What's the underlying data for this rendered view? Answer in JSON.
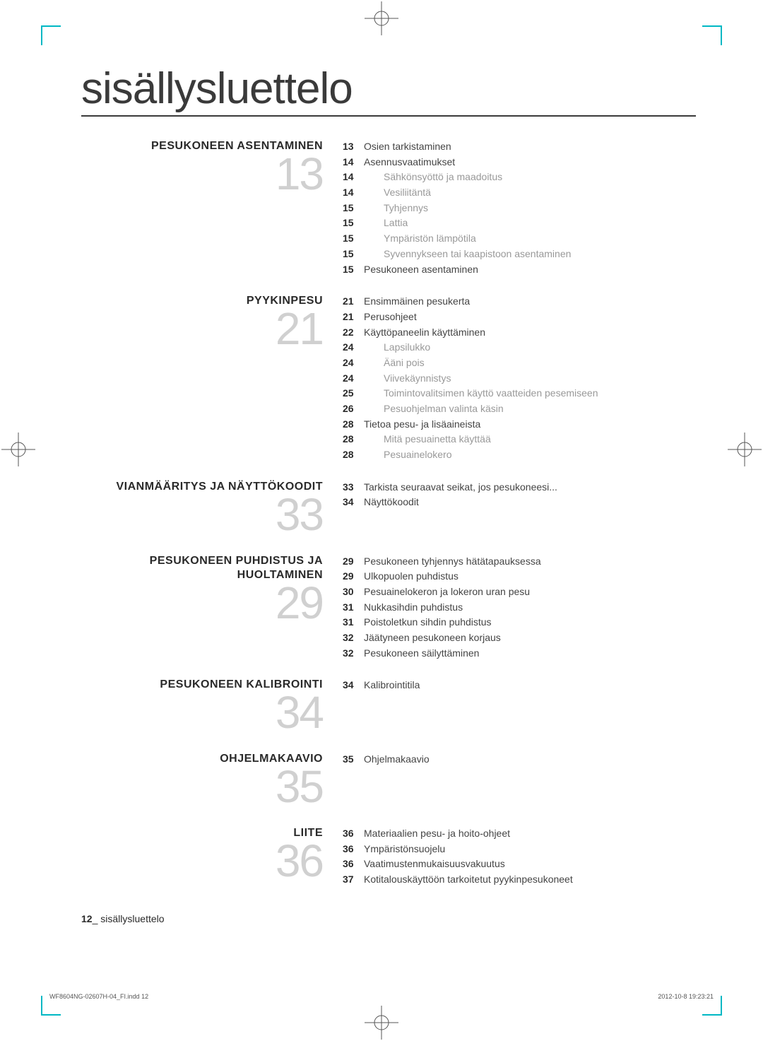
{
  "page_title": "sisällysluettelo",
  "colors": {
    "text": "#3a3a3a",
    "muted": "#999999",
    "bignum": "#d0d0d0",
    "accent": "#00b8c4",
    "rule": "#3a3a3a"
  },
  "sections": [
    {
      "heading": "PESUKONEEN ASENTAMINEN",
      "bignum": "13",
      "entries": [
        {
          "page": "13",
          "text": "Osien tarkistaminen",
          "indent": false
        },
        {
          "page": "14",
          "text": "Asennusvaatimukset",
          "indent": false
        },
        {
          "page": "14",
          "text": "Sähkönsyöttö ja maadoitus",
          "indent": true
        },
        {
          "page": "14",
          "text": "Vesiliitäntä",
          "indent": true
        },
        {
          "page": "15",
          "text": "Tyhjennys",
          "indent": true
        },
        {
          "page": "15",
          "text": "Lattia",
          "indent": true
        },
        {
          "page": "15",
          "text": "Ympäristön lämpötila",
          "indent": true
        },
        {
          "page": "15",
          "text": "Syvennykseen tai kaapistoon asentaminen",
          "indent": true
        },
        {
          "page": "15",
          "text": "Pesukoneen asentaminen",
          "indent": false
        }
      ]
    },
    {
      "heading": "PYYKINPESU",
      "bignum": "21",
      "entries": [
        {
          "page": "21",
          "text": "Ensimmäinen pesukerta",
          "indent": false
        },
        {
          "page": "21",
          "text": "Perusohjeet",
          "indent": false
        },
        {
          "page": "22",
          "text": "Käyttöpaneelin käyttäminen",
          "indent": false
        },
        {
          "page": "24",
          "text": "Lapsilukko",
          "indent": true
        },
        {
          "page": "24",
          "text": "Ääni pois",
          "indent": true
        },
        {
          "page": "24",
          "text": "Viivekäynnistys",
          "indent": true
        },
        {
          "page": "25",
          "text": "Toimintovalitsimen käyttö vaatteiden pesemiseen",
          "indent": true
        },
        {
          "page": "26",
          "text": "Pesuohjelman valinta käsin",
          "indent": true
        },
        {
          "page": "28",
          "text": "Tietoa pesu- ja lisäaineista",
          "indent": false
        },
        {
          "page": "28",
          "text": "Mitä pesuainetta käyttää",
          "indent": true
        },
        {
          "page": "28",
          "text": "Pesuainelokero",
          "indent": true
        }
      ]
    },
    {
      "heading": "VIANMÄÄRITYS JA NÄYTTÖKOODIT",
      "bignum": "33",
      "entries": [
        {
          "page": "33",
          "text": "Tarkista seuraavat seikat, jos pesukoneesi...",
          "indent": false
        },
        {
          "page": "34",
          "text": "Näyttökoodit",
          "indent": false
        }
      ]
    },
    {
      "heading": "PESUKONEEN PUHDISTUS JA HUOLTAMINEN",
      "bignum": "29",
      "entries": [
        {
          "page": "29",
          "text": "Pesukoneen tyhjennys hätätapauksessa",
          "indent": false
        },
        {
          "page": "29",
          "text": "Ulkopuolen puhdistus",
          "indent": false
        },
        {
          "page": "30",
          "text": "Pesuainelokeron ja lokeron uran pesu",
          "indent": false
        },
        {
          "page": "31",
          "text": "Nukkasihdin puhdistus",
          "indent": false
        },
        {
          "page": "31",
          "text": "Poistoletkun sihdin puhdistus",
          "indent": false
        },
        {
          "page": "32",
          "text": "Jäätyneen pesukoneen korjaus",
          "indent": false
        },
        {
          "page": "32",
          "text": "Pesukoneen säilyttäminen",
          "indent": false
        }
      ]
    },
    {
      "heading": "PESUKONEEN KALIBROINTI",
      "bignum": "34",
      "entries": [
        {
          "page": "34",
          "text": "Kalibrointitila",
          "indent": false
        }
      ]
    },
    {
      "heading": "OHJELMAKAAVIO",
      "bignum": "35",
      "entries": [
        {
          "page": "35",
          "text": "Ohjelmakaavio",
          "indent": false
        }
      ]
    },
    {
      "heading": "LIITE",
      "bignum": "36",
      "entries": [
        {
          "page": "36",
          "text": "Materiaalien pesu- ja hoito-ohjeet",
          "indent": false
        },
        {
          "page": "36",
          "text": "Ympäristönsuojelu",
          "indent": false
        },
        {
          "page": "36",
          "text": "Vaatimustenmukaisuusvakuutus",
          "indent": false
        },
        {
          "page": "37",
          "text": "Kotitalouskäyttöön tarkoitetut pyykinpesukoneet",
          "indent": false
        }
      ]
    }
  ],
  "footer": {
    "page_number": "12",
    "page_label": "sisällysluettelo",
    "imprint_left": "WF8604NG-02607H-04_FI.indd   12",
    "imprint_right": "2012-10-8   19:23:21"
  }
}
